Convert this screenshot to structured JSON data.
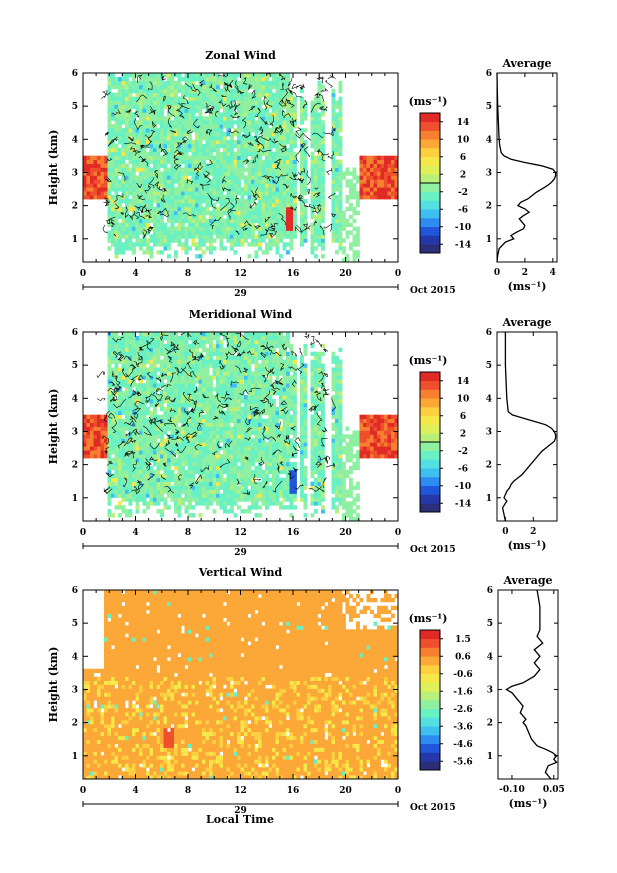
{
  "figure": {
    "month_label": "Oct 2015",
    "date_label": "29",
    "xlabel": "Local Time"
  },
  "chart_data": [
    {
      "type": "heatmap",
      "title": "Zonal Wind",
      "ylabel": "Height (km)",
      "ylim": [
        0.3,
        6
      ],
      "yticks": [
        "1",
        "2",
        "3",
        "4",
        "5",
        "6"
      ],
      "xticks": [
        "0",
        "4",
        "8",
        "12",
        "16",
        "20",
        "0"
      ],
      "xlim": [
        0,
        24
      ],
      "colorbar": {
        "unit": "(ms⁻¹)",
        "ticks": [
          "14",
          "10",
          "6",
          "2",
          "-2",
          "-6",
          "-10",
          "-14"
        ],
        "range": [
          -16,
          16
        ]
      },
      "profile": {
        "title": "Average",
        "xunit": "(ms⁻¹)",
        "xticks": [
          "0",
          "2",
          "4"
        ],
        "xlim": [
          0,
          4.3
        ],
        "height": [
          0.3,
          0.5,
          0.7,
          0.9,
          1.0,
          1.1,
          1.2,
          1.3,
          1.4,
          1.5,
          1.6,
          1.7,
          1.8,
          1.9,
          2.0,
          2.1,
          2.2,
          2.3,
          2.4,
          2.5,
          2.6,
          2.7,
          2.8,
          2.9,
          3.0,
          3.1,
          3.2,
          3.3,
          3.4,
          3.5,
          3.6,
          3.8,
          4.0,
          4.5,
          5.0,
          5.5,
          6.0
        ],
        "values": [
          0.0,
          0.05,
          0.15,
          0.6,
          1.2,
          1.0,
          1.4,
          1.9,
          2.0,
          1.8,
          1.6,
          1.9,
          2.3,
          2.0,
          1.5,
          1.7,
          2.2,
          2.5,
          2.8,
          3.2,
          3.6,
          3.9,
          4.1,
          4.2,
          4.2,
          4.0,
          3.2,
          2.0,
          1.0,
          0.5,
          0.3,
          0.2,
          0.15,
          0.1,
          0.05,
          0.02,
          0.0
        ]
      }
    },
    {
      "type": "heatmap",
      "title": "Meridional Wind",
      "ylabel": "Height (km)",
      "ylim": [
        0.3,
        6
      ],
      "yticks": [
        "1",
        "2",
        "3",
        "4",
        "5",
        "6"
      ],
      "xticks": [
        "0",
        "4",
        "8",
        "12",
        "16",
        "20",
        "0"
      ],
      "xlim": [
        0,
        24
      ],
      "colorbar": {
        "unit": "(ms⁻¹)",
        "ticks": [
          "14",
          "10",
          "6",
          "2",
          "-2",
          "-6",
          "-10",
          "-14"
        ],
        "range": [
          -16,
          16
        ]
      },
      "profile": {
        "title": "Average",
        "xunit": "(ms⁻¹)",
        "xticks": [
          "0",
          "2"
        ],
        "xlim": [
          -0.6,
          3.7
        ],
        "height": [
          0.3,
          0.5,
          0.7,
          0.9,
          1.0,
          1.1,
          1.2,
          1.3,
          1.4,
          1.5,
          1.6,
          1.7,
          1.8,
          1.9,
          2.0,
          2.1,
          2.2,
          2.3,
          2.4,
          2.5,
          2.6,
          2.7,
          2.8,
          2.9,
          3.0,
          3.1,
          3.2,
          3.3,
          3.4,
          3.5,
          3.6,
          3.8,
          4.0,
          4.5,
          5.0,
          5.5,
          6.0
        ],
        "values": [
          0.0,
          -0.1,
          -0.2,
          0.1,
          -0.1,
          0.0,
          0.1,
          0.3,
          0.4,
          0.6,
          0.9,
          1.2,
          1.4,
          1.6,
          1.8,
          2.0,
          2.2,
          2.4,
          2.6,
          2.9,
          3.2,
          3.5,
          3.6,
          3.6,
          3.5,
          3.3,
          2.9,
          2.1,
          1.3,
          0.5,
          0.2,
          0.15,
          0.1,
          0.05,
          0.0,
          0.0,
          0.0
        ]
      }
    },
    {
      "type": "heatmap",
      "title": "Vertical Wind",
      "ylabel": "Height (km)",
      "ylim": [
        0.3,
        6
      ],
      "yticks": [
        "1",
        "2",
        "3",
        "4",
        "5",
        "6"
      ],
      "xticks": [
        "0",
        "4",
        "8",
        "12",
        "16",
        "20",
        "0"
      ],
      "xlim": [
        0,
        24
      ],
      "colorbar": {
        "unit": "(ms⁻¹)",
        "ticks": [
          "1.5",
          "0.6",
          "-0.6",
          "-1.6",
          "-2.6",
          "-3.6",
          "-4.6",
          "-5.6"
        ],
        "range": [
          -6.1,
          2.0
        ]
      },
      "profile": {
        "title": "Average",
        "xunit": "(ms⁻¹)",
        "xticks": [
          "-0.10",
          "0.05"
        ],
        "xlim": [
          -0.15,
          0.065
        ],
        "height": [
          0.3,
          0.5,
          0.7,
          0.8,
          0.9,
          1.0,
          1.1,
          1.2,
          1.3,
          1.5,
          1.7,
          1.9,
          2.0,
          2.1,
          2.3,
          2.5,
          2.7,
          2.9,
          3.0,
          3.1,
          3.2,
          3.4,
          3.6,
          3.8,
          4.0,
          4.2,
          4.4,
          4.6,
          4.8,
          5.0,
          5.5,
          6.0
        ],
        "values": [
          0.04,
          0.02,
          0.03,
          0.06,
          0.05,
          0.06,
          0.045,
          0.02,
          -0.01,
          -0.03,
          -0.04,
          -0.05,
          -0.06,
          -0.05,
          -0.07,
          -0.06,
          -0.08,
          -0.1,
          -0.12,
          -0.1,
          -0.06,
          -0.02,
          0.0,
          -0.02,
          0.0,
          -0.02,
          0.01,
          -0.01,
          0.0,
          0.0,
          0.0,
          -0.01
        ]
      }
    }
  ]
}
